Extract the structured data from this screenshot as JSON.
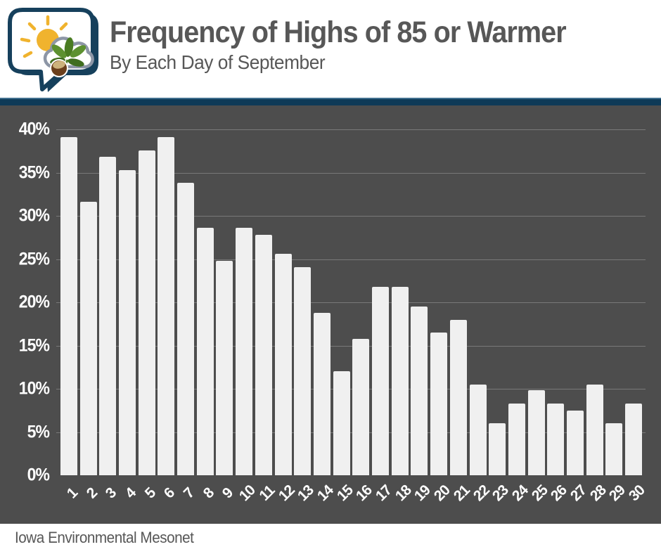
{
  "header": {
    "title": "Frequency of Highs of 85 or Warmer",
    "subtitle": "By Each Day of September"
  },
  "footer": {
    "source": "Iowa Environmental Mesonet"
  },
  "logo": {
    "name": "iem-speech-bubble-logo",
    "elements": [
      "speech-bubble",
      "sun",
      "cloud",
      "leaf",
      "acorn"
    ]
  },
  "colors": {
    "navy": "#0e3a57",
    "navy_light": "#3f6e8e",
    "chart_background": "#4d4d4d",
    "bar_fill": "#f0f0f0",
    "gridline": "rgba(255,255,255,0.25)",
    "heading_text": "#575757",
    "axis_text": "#ffffff",
    "sun_yellow": "#f0b32e",
    "cloud_outline": "#8d96a6",
    "leaf_green_dark": "#3f6d1e",
    "leaf_green_light": "#5d9130",
    "nut_brown": "#6b3f1c",
    "nut_cap_tan": "#cdb27c"
  },
  "chart_data": {
    "type": "bar",
    "title": "Frequency of Highs of 85 or Warmer",
    "subtitle": "By Each Day of September",
    "xlabel": "",
    "ylabel": "",
    "categories": [
      "1",
      "2",
      "3",
      "4",
      "5",
      "6",
      "7",
      "8",
      "9",
      "10",
      "11",
      "12",
      "13",
      "14",
      "15",
      "16",
      "17",
      "18",
      "19",
      "20",
      "21",
      "22",
      "23",
      "24",
      "25",
      "26",
      "27",
      "28",
      "29",
      "30"
    ],
    "values": [
      39.1,
      31.6,
      36.8,
      35.3,
      37.6,
      39.1,
      33.8,
      28.6,
      24.8,
      28.6,
      27.8,
      25.6,
      24.1,
      18.8,
      12.0,
      15.8,
      21.8,
      21.8,
      19.5,
      16.5,
      18.0,
      10.5,
      6.0,
      8.3,
      9.8,
      8.3,
      7.5,
      10.5,
      6.0,
      8.3
    ],
    "ylim": [
      0,
      42.8
    ],
    "yticks": [
      0,
      5,
      10,
      15,
      20,
      25,
      30,
      35,
      40
    ],
    "ytick_suffix": "%",
    "grid": "horizontal",
    "legend": "none",
    "bar_color": "#f0f0f0",
    "background": "#4d4d4d"
  }
}
